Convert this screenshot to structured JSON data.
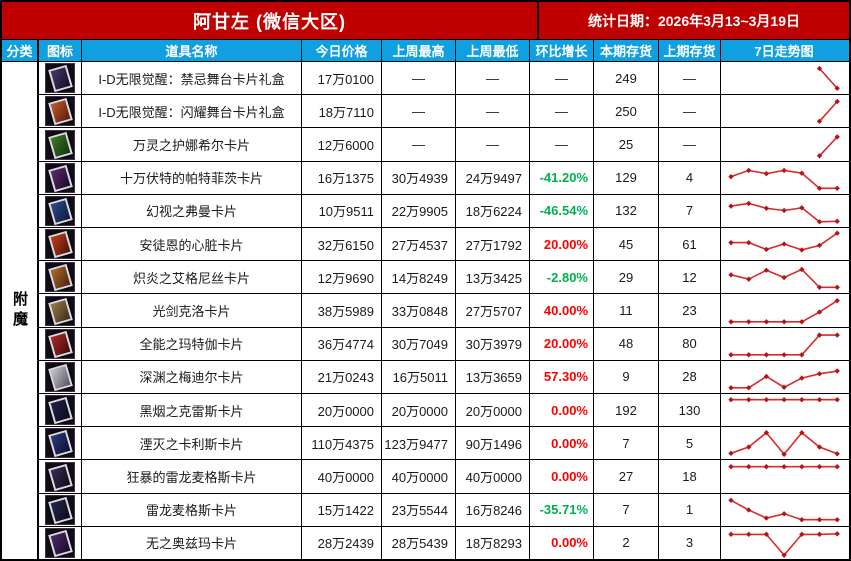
{
  "title_bar": {
    "title": "阿甘左 (微信大区)",
    "date": "统计日期：2026年3月13~3月19日"
  },
  "columns": [
    "分类",
    "图标",
    "道具名称",
    "今日价格",
    "上周最高",
    "上周最低",
    "环比增长",
    "本期存货",
    "上期存货",
    "7日走势图"
  ],
  "category": "附魔",
  "colors": {
    "header_red": "#C00000",
    "header_blue": "#109FE0",
    "up": "#FF0000",
    "down": "#00B050",
    "neutral": "#1A1A1A",
    "trend_line": "#D92B2B",
    "trend_marker": "#B31515"
  },
  "chart_data": {
    "type": "line",
    "note": "7-day sparkline per row, relative price level 0-100, null = no data that day"
  },
  "rows": [
    {
      "name": "I-D无限觉醒：禁忌舞台卡片礼盒",
      "today": "17万0100",
      "high": "—",
      "low": "—",
      "growth": "—",
      "tone": "none",
      "stock_now": "249",
      "stock_prev": "—",
      "trend": [
        null,
        null,
        null,
        null,
        null,
        85,
        12
      ],
      "icon": [
        "#4a3570",
        "#150c20"
      ]
    },
    {
      "name": "I-D无限觉醒：闪耀舞台卡片礼盒",
      "today": "18万7110",
      "high": "—",
      "low": "—",
      "growth": "—",
      "tone": "none",
      "stock_now": "250",
      "stock_prev": "—",
      "trend": [
        null,
        null,
        null,
        null,
        null,
        12,
        85
      ],
      "icon": [
        "#c05a28",
        "#5a1a10"
      ]
    },
    {
      "name": "万灵之护娜希尔卡片",
      "today": "12万6000",
      "high": "—",
      "low": "—",
      "growth": "—",
      "tone": "none",
      "stock_now": "25",
      "stock_prev": "—",
      "trend": [
        null,
        null,
        null,
        null,
        null,
        10,
        80
      ],
      "icon": [
        "#3f7a28",
        "#14320e"
      ]
    },
    {
      "name": "十万伏特的帕特菲茨卡片",
      "today": "16万1375",
      "high": "30万4939",
      "low": "24万9497",
      "growth": "-41.20%",
      "tone": "down",
      "stock_now": "129",
      "stock_prev": "4",
      "trend": [
        55,
        78,
        66,
        78,
        68,
        12,
        12
      ],
      "icon": [
        "#5e2a6e",
        "#1a0a22"
      ]
    },
    {
      "name": "幻视之弗曼卡片",
      "today": "10万9511",
      "high": "22万9905",
      "low": "18万6224",
      "growth": "-46.54%",
      "tone": "down",
      "stock_now": "132",
      "stock_prev": "7",
      "trend": [
        68,
        78,
        60,
        52,
        62,
        10,
        12
      ],
      "icon": [
        "#2a4a8e",
        "#0e1a3a"
      ]
    },
    {
      "name": "安徒恩的心脏卡片",
      "today": "32万6150",
      "high": "27万4537",
      "low": "27万1792",
      "growth": "20.00%",
      "tone": "up",
      "stock_now": "45",
      "stock_prev": "61",
      "trend": [
        55,
        55,
        30,
        50,
        28,
        45,
        90
      ],
      "icon": [
        "#c04018",
        "#501008"
      ]
    },
    {
      "name": "炽炎之艾格尼丝卡片",
      "today": "12万9690",
      "high": "14万8249",
      "low": "13万3425",
      "growth": "-2.80%",
      "tone": "down",
      "stock_now": "29",
      "stock_prev": "12",
      "trend": [
        58,
        42,
        75,
        48,
        78,
        12,
        12
      ],
      "icon": [
        "#b06a28",
        "#4a240e"
      ]
    },
    {
      "name": "光剑克洛卡片",
      "today": "38万5989",
      "high": "33万0848",
      "low": "27万5707",
      "growth": "40.00%",
      "tone": "up",
      "stock_now": "11",
      "stock_prev": "23",
      "trend": [
        10,
        10,
        10,
        10,
        10,
        46,
        88
      ],
      "icon": [
        "#9a7a4a",
        "#3a2c16"
      ]
    },
    {
      "name": "全能之玛特伽卡片",
      "today": "36万4774",
      "high": "30万7049",
      "low": "30万3979",
      "growth": "20.00%",
      "tone": "up",
      "stock_now": "48",
      "stock_prev": "80",
      "trend": [
        10,
        10,
        10,
        10,
        10,
        83,
        83
      ],
      "icon": [
        "#b02828",
        "#400a0a"
      ]
    },
    {
      "name": "深渊之梅迪尔卡片",
      "today": "21万0243",
      "high": "16万5011",
      "low": "13万3659",
      "growth": "57.30%",
      "tone": "up",
      "stock_now": "9",
      "stock_prev": "28",
      "trend": [
        10,
        10,
        52,
        12,
        46,
        62,
        72
      ],
      "icon": [
        "#c8c8cf",
        "#55555f"
      ]
    },
    {
      "name": "黑烟之克雷斯卡片",
      "today": "20万0000",
      "high": "20万0000",
      "low": "20万0000",
      "growth": "0.00%",
      "tone": "up",
      "stock_now": "192",
      "stock_prev": "130",
      "trend": [
        88,
        88,
        88,
        88,
        88,
        88,
        88
      ],
      "icon": [
        "#22224a",
        "#0a0a18"
      ]
    },
    {
      "name": "湮灭之卡利斯卡片",
      "today": "110万4375",
      "high": "123万9477",
      "low": "90万1496",
      "growth": "0.00%",
      "tone": "up",
      "stock_now": "7",
      "stock_prev": "5",
      "trend": [
        12,
        35,
        88,
        8,
        88,
        35,
        10
      ],
      "icon": [
        "#2a3a7e",
        "#0c1030"
      ]
    },
    {
      "name": "狂暴的雷龙麦格斯卡片",
      "today": "40万0000",
      "high": "40万0000",
      "low": "40万0000",
      "growth": "0.00%",
      "tone": "up",
      "stock_now": "27",
      "stock_prev": "18",
      "trend": [
        88,
        88,
        88,
        88,
        88,
        88,
        88
      ],
      "icon": [
        "#3a2a4e",
        "#140a1e"
      ]
    },
    {
      "name": "雷龙麦格斯卡片",
      "today": "15万1422",
      "high": "23万5544",
      "low": "16万8246",
      "growth": "-35.71%",
      "tone": "down",
      "stock_now": "7",
      "stock_prev": "1",
      "trend": [
        86,
        50,
        20,
        36,
        14,
        14,
        14
      ],
      "icon": [
        "#26264e",
        "#0a0a1c"
      ]
    },
    {
      "name": "无之奥兹玛卡片",
      "today": "28万2439",
      "high": "28万5439",
      "low": "18万8293",
      "growth": "0.00%",
      "tone": "up",
      "stock_now": "2",
      "stock_prev": "3",
      "trend": [
        82,
        82,
        82,
        5,
        82,
        82,
        84
      ],
      "icon": [
        "#4a2a6a",
        "#180a26"
      ]
    }
  ]
}
